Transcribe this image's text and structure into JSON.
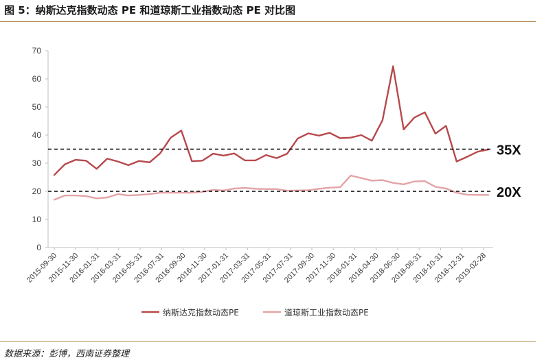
{
  "header": {
    "title": "图 5：纳斯达克指数动态 PE 和道琼斯工业指数动态 PE 对比图"
  },
  "footer": {
    "source": "数据来源：彭博，西南证券整理"
  },
  "colors": {
    "nasdaq": "#b7484b",
    "dow": "#e3a3a6",
    "axis": "#bfbfbf",
    "reference": "#000000",
    "rule": "#b38b4d"
  },
  "chart_data": {
    "type": "line",
    "x_tick_labels": [
      "2015-09-30",
      "2015-11-30",
      "2016-01-31",
      "2016-03-31",
      "2016-05-31",
      "2016-07-31",
      "2016-09-30",
      "2016-11-30",
      "2017-01-31",
      "2017-03-31",
      "2017-05-31",
      "2017-07-31",
      "2017-09-30",
      "2017-11-30",
      "2018-01-31",
      "2018-04-30",
      "2018-06-30",
      "2018-08-31",
      "2018-10-31",
      "2018-12-31",
      "2019-02-28"
    ],
    "y_ticks": [
      0,
      10,
      20,
      30,
      40,
      50,
      60,
      70
    ],
    "ylim": [
      0,
      70
    ],
    "series": [
      {
        "name": "纳斯达克指数动态PE",
        "values": [
          25.8,
          29.6,
          31.2,
          30.9,
          28.0,
          31.6,
          30.6,
          29.3,
          30.8,
          30.3,
          33.5,
          39.1,
          41.6,
          30.7,
          30.9,
          33.4,
          32.7,
          33.5,
          31.0,
          31.0,
          32.9,
          31.8,
          33.4,
          38.8,
          40.6,
          39.8,
          40.8,
          38.9,
          39.1,
          40.0,
          38.0,
          45.3,
          64.5,
          42.0,
          46.2,
          48.1,
          40.5,
          43.3,
          30.6,
          32.3,
          34.1,
          34.9
        ]
      },
      {
        "name": "道琼斯工业指数动态PE",
        "values": [
          17.0,
          18.5,
          18.5,
          18.3,
          17.5,
          17.8,
          19.0,
          18.5,
          18.7,
          19.0,
          19.5,
          19.5,
          19.5,
          19.5,
          19.8,
          20.5,
          20.3,
          21.0,
          21.2,
          20.9,
          20.8,
          20.8,
          20.2,
          20.3,
          20.4,
          20.9,
          21.3,
          21.5,
          25.6,
          24.7,
          23.8,
          24.0,
          23.0,
          22.5,
          23.5,
          23.6,
          21.6,
          21.0,
          19.5,
          18.8,
          18.7,
          18.7
        ]
      }
    ],
    "reference_lines": [
      {
        "label": "35X",
        "value": 35
      },
      {
        "label": "20X",
        "value": 20
      }
    ],
    "legend": {
      "position": "bottom"
    }
  }
}
